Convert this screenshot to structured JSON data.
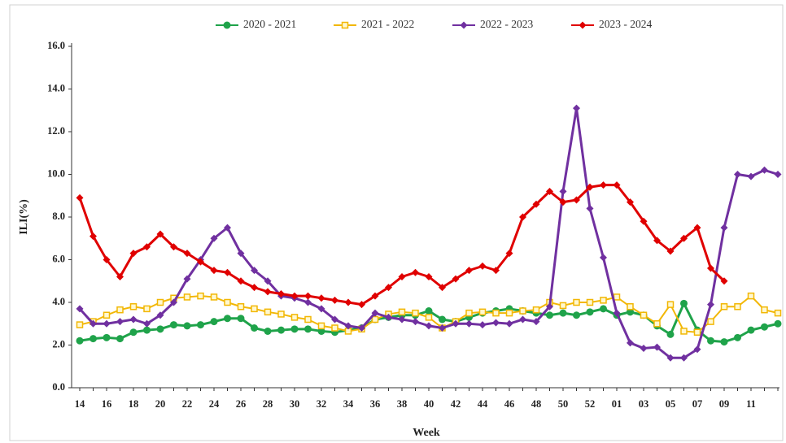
{
  "chart_data": {
    "type": "line",
    "x_label": "Week",
    "y_label": "ILI(%)",
    "categories": [
      "14",
      null,
      "16",
      null,
      "18",
      null,
      "20",
      null,
      "22",
      null,
      "24",
      null,
      "26",
      null,
      "28",
      null,
      "30",
      null,
      "32",
      null,
      "34",
      null,
      "36",
      null,
      "38",
      null,
      "40",
      null,
      "42",
      null,
      "44",
      null,
      "46",
      null,
      "48",
      null,
      "50",
      null,
      "52",
      null,
      "01",
      null,
      "03",
      null,
      "05",
      null,
      "07",
      null,
      "09",
      null,
      "11",
      null,
      null
    ],
    "ylim": [
      0,
      16
    ],
    "yticks": [
      {
        "value": 0,
        "label": "0.0"
      },
      {
        "value": 2,
        "label": "2.0"
      },
      {
        "value": 4,
        "label": "4.0"
      },
      {
        "value": 6,
        "label": "6.0"
      },
      {
        "value": 8,
        "label": "8.0"
      },
      {
        "value": 10,
        "label": "10.0"
      },
      {
        "value": 12,
        "label": "12.0"
      },
      {
        "value": 14,
        "label": "14.0"
      },
      {
        "value": 16,
        "label": "16.0"
      }
    ],
    "grid": false,
    "legend": "top",
    "series": [
      {
        "name": "2020 - 2021",
        "color": "#1fa34a",
        "marker": "circle",
        "values": [
          2.2,
          2.3,
          2.35,
          2.3,
          2.6,
          2.7,
          2.75,
          2.95,
          2.9,
          2.95,
          3.1,
          3.25,
          3.25,
          2.8,
          2.65,
          2.7,
          2.75,
          2.75,
          2.65,
          2.6,
          2.7,
          2.8,
          3.2,
          3.3,
          3.4,
          3.4,
          3.6,
          3.2,
          3.1,
          3.3,
          3.5,
          3.6,
          3.7,
          3.6,
          3.5,
          3.4,
          3.5,
          3.4,
          3.55,
          3.7,
          3.4,
          3.55,
          3.4,
          2.9,
          2.5,
          3.95,
          2.7,
          2.2,
          2.15,
          2.35,
          2.7,
          2.85,
          3.0
        ]
      },
      {
        "name": "2021 - 2022",
        "color": "#f2b705",
        "marker": "square",
        "values": [
          2.95,
          3.1,
          3.4,
          3.65,
          3.8,
          3.7,
          4.0,
          4.2,
          4.25,
          4.3,
          4.25,
          4.0,
          3.8,
          3.7,
          3.55,
          3.45,
          3.3,
          3.2,
          2.9,
          2.8,
          2.65,
          2.75,
          3.2,
          3.45,
          3.55,
          3.5,
          3.3,
          2.8,
          3.1,
          3.5,
          3.55,
          3.5,
          3.5,
          3.6,
          3.65,
          4.0,
          3.85,
          4.0,
          4.0,
          4.1,
          4.25,
          3.8,
          3.4,
          3.0,
          3.9,
          2.65,
          2.6,
          3.1,
          3.8,
          3.8,
          4.3,
          3.65,
          3.5
        ]
      },
      {
        "name": "2022 - 2023",
        "color": "#7030a0",
        "marker": "diamond",
        "values": [
          3.7,
          3.0,
          3.0,
          3.1,
          3.2,
          3.0,
          3.4,
          4.0,
          5.1,
          6.0,
          7.0,
          7.5,
          6.3,
          5.5,
          5.0,
          4.3,
          4.2,
          4.0,
          3.7,
          3.2,
          2.9,
          2.8,
          3.5,
          3.3,
          3.2,
          3.1,
          2.9,
          2.8,
          3.0,
          3.0,
          2.95,
          3.05,
          3.0,
          3.2,
          3.1,
          3.8,
          9.2,
          13.1,
          8.4,
          6.1,
          3.5,
          2.1,
          1.85,
          1.9,
          1.4,
          1.4,
          1.8,
          3.9,
          7.5,
          10.0,
          9.9,
          10.2,
          10.0
        ]
      },
      {
        "name": "2023 - 2024",
        "color": "#e00000",
        "marker": "diamond",
        "values": [
          8.9,
          7.1,
          6.0,
          5.2,
          6.3,
          6.6,
          7.2,
          6.6,
          6.3,
          5.9,
          5.5,
          5.4,
          5.0,
          4.7,
          4.5,
          4.4,
          4.3,
          4.3,
          4.2,
          4.1,
          4.0,
          3.9,
          4.3,
          4.7,
          5.2,
          5.4,
          5.2,
          4.7,
          5.1,
          5.5,
          5.7,
          5.5,
          6.3,
          8.0,
          8.6,
          9.2,
          8.7,
          8.8,
          9.4,
          9.5,
          9.5,
          8.7,
          7.8,
          6.9,
          6.4,
          7.0,
          7.5,
          5.6,
          5.0,
          null,
          null,
          null,
          null
        ]
      }
    ]
  }
}
